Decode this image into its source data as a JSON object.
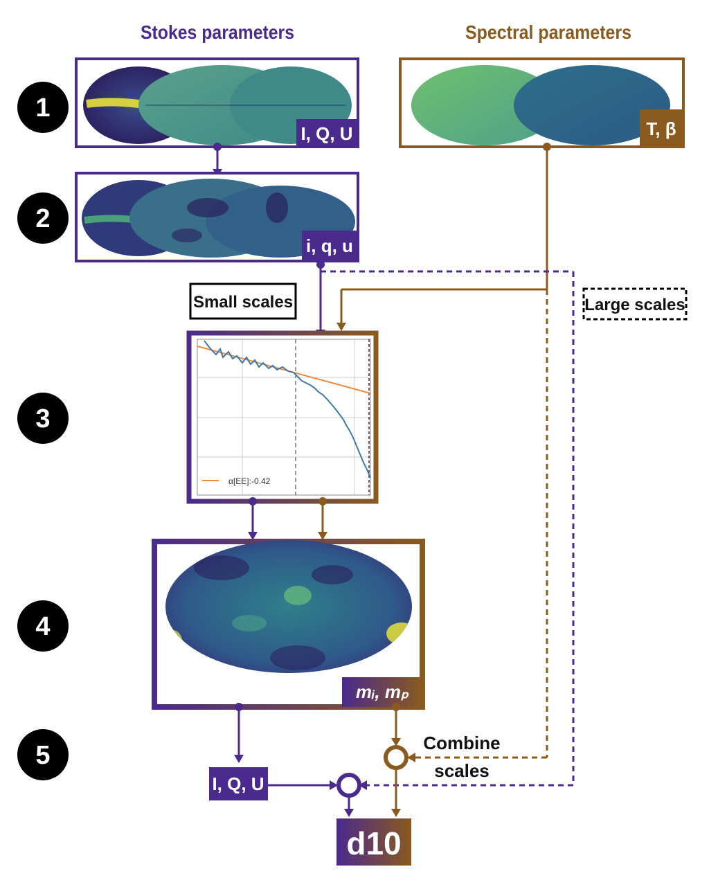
{
  "headers": {
    "stokes": "Stokes parameters",
    "spectral": "Spectral parameters"
  },
  "steps": [
    "1",
    "2",
    "3",
    "4",
    "5"
  ],
  "boxes": {
    "stokes_input_label": "I, Q, U",
    "spectral_input_label": "T, β",
    "normalized_label": "i, q, u",
    "modulation_label": "mᵢ, mₚ",
    "output_iqu_label": "I, Q, U",
    "final_label": "d10"
  },
  "scale_tags": {
    "small": "Small scales",
    "large": "Large scales"
  },
  "combine_label": [
    "Combine",
    "scales"
  ],
  "chart_data": {
    "type": "line",
    "legend": "α[EE]:-0.42",
    "slope": -0.42
  },
  "colors": {
    "stokes": "#4a2a8c",
    "spectral": "#8a5a1e",
    "text_dark": "#111111"
  }
}
